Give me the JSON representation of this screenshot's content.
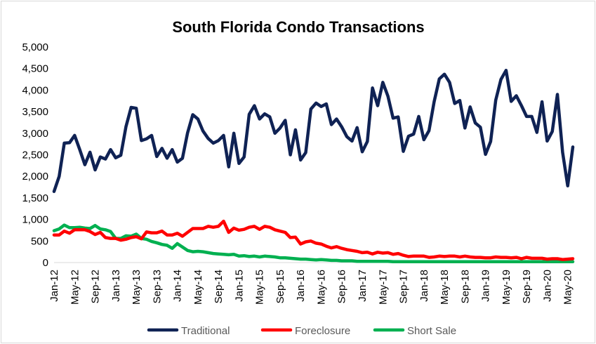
{
  "chart_data": {
    "type": "line",
    "title": "South Florida Condo Transactions",
    "xlabel": "",
    "ylabel": "",
    "ylim": [
      0,
      5000
    ],
    "yticks": [
      "0",
      "500",
      "1,000",
      "1,500",
      "2,000",
      "2,500",
      "3,000",
      "3,500",
      "4,000",
      "4,500",
      "5,000"
    ],
    "ytick_values": [
      0,
      500,
      1000,
      1500,
      2000,
      2500,
      3000,
      3500,
      4000,
      4500,
      5000
    ],
    "x_start": "Jan-12",
    "x_end": "May-20",
    "xticks": [
      "Jan-12",
      "May-12",
      "Sep-12",
      "Jan-13",
      "May-13",
      "Sep-13",
      "Jan-14",
      "May-14",
      "Sep-14",
      "Jan-15",
      "May-15",
      "Sep-15",
      "Jan-16",
      "May-16",
      "Sep-16",
      "Jan-17",
      "May-17",
      "Sep-17",
      "Jan-18",
      "May-18",
      "Sep-18",
      "Jan-19",
      "May-19",
      "Sep-19",
      "Jan-20",
      "May-20"
    ],
    "grid": false,
    "legend_position": "bottom",
    "series": [
      {
        "name": "Traditional",
        "color": "#0f2254",
        "values": [
          1650,
          2000,
          2770,
          2780,
          2950,
          2620,
          2270,
          2560,
          2150,
          2450,
          2400,
          2620,
          2430,
          2490,
          3150,
          3600,
          3580,
          2830,
          2870,
          2950,
          2460,
          2650,
          2420,
          2620,
          2330,
          2420,
          3010,
          3430,
          3330,
          3050,
          2880,
          2770,
          2830,
          2950,
          2220,
          3000,
          2300,
          2450,
          3440,
          3640,
          3330,
          3450,
          3380,
          3000,
          3120,
          3300,
          2500,
          3080,
          2380,
          2550,
          3560,
          3700,
          3620,
          3680,
          3200,
          3330,
          3150,
          2920,
          2820,
          3130,
          2570,
          2810,
          4050,
          3640,
          4180,
          3860,
          3350,
          3380,
          2580,
          2930,
          2980,
          3390,
          2850,
          3060,
          3730,
          4260,
          4370,
          4180,
          3690,
          3760,
          3120,
          3610,
          3240,
          3140,
          2510,
          2810,
          3770,
          4250,
          4460,
          3740,
          3870,
          3640,
          3390,
          3390,
          3020,
          3730,
          2820,
          3040,
          3900,
          2560,
          1780,
          2680
        ]
      },
      {
        "name": "Foreclosure",
        "color": "#ff0000",
        "values": [
          640,
          640,
          730,
          680,
          760,
          760,
          760,
          720,
          650,
          700,
          580,
          560,
          560,
          520,
          540,
          580,
          600,
          550,
          710,
          690,
          690,
          730,
          640,
          640,
          680,
          610,
          700,
          790,
          790,
          790,
          840,
          820,
          840,
          960,
          700,
          800,
          750,
          770,
          820,
          840,
          770,
          840,
          820,
          760,
          730,
          700,
          580,
          590,
          430,
          480,
          500,
          450,
          430,
          380,
          340,
          370,
          330,
          300,
          280,
          260,
          230,
          240,
          200,
          240,
          220,
          230,
          190,
          210,
          170,
          140,
          150,
          150,
          150,
          120,
          130,
          150,
          140,
          150,
          150,
          130,
          150,
          130,
          120,
          120,
          110,
          110,
          130,
          120,
          120,
          110,
          120,
          90,
          120,
          100,
          100,
          100,
          80,
          90,
          90,
          70,
          80,
          90
        ]
      },
      {
        "name": "Short Sale",
        "color": "#00b050",
        "values": [
          740,
          780,
          870,
          810,
          810,
          820,
          800,
          790,
          860,
          780,
          760,
          720,
          560,
          560,
          620,
          610,
          660,
          560,
          540,
          490,
          460,
          420,
          400,
          330,
          440,
          360,
          280,
          250,
          260,
          250,
          230,
          210,
          200,
          190,
          180,
          190,
          150,
          160,
          140,
          150,
          130,
          150,
          140,
          130,
          110,
          110,
          100,
          90,
          80,
          80,
          70,
          60,
          70,
          60,
          50,
          50,
          40,
          40,
          40,
          30,
          30,
          30,
          30,
          30,
          30,
          30,
          20,
          20,
          20,
          20,
          20,
          20,
          20,
          20,
          20,
          20,
          20,
          20,
          20,
          20,
          20,
          20,
          20,
          20,
          20,
          20,
          20,
          20,
          20,
          20,
          20,
          20,
          20,
          20,
          20,
          20,
          20,
          20,
          20,
          20,
          20,
          20
        ]
      }
    ]
  }
}
